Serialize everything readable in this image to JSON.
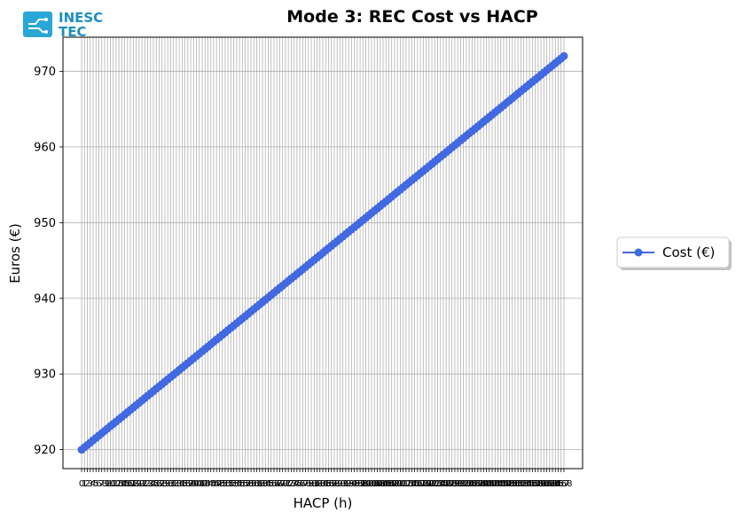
{
  "logo": {
    "line1": "INESC",
    "line2": "TEC"
  },
  "chart_data": {
    "type": "line",
    "title": "Mode 3: REC Cost vs HACP",
    "xlabel": "HACP (h)",
    "ylabel": "Euros (€)",
    "x": [
      0,
      1,
      2,
      3,
      4,
      5,
      6,
      7,
      8,
      9,
      10,
      11,
      12,
      13,
      14,
      15,
      16,
      17,
      18,
      19,
      20,
      21,
      22,
      23,
      24,
      25,
      26,
      27,
      28,
      29,
      30,
      31,
      32,
      33,
      34,
      35,
      36,
      37,
      38,
      39,
      40,
      41,
      42,
      43,
      44,
      45,
      46,
      47,
      48,
      49,
      50,
      51,
      52,
      53,
      54,
      55,
      56,
      57,
      58,
      59,
      60,
      61,
      62,
      63,
      64,
      65,
      66,
      67,
      68,
      69,
      70,
      71,
      72,
      73,
      74,
      75,
      76,
      77,
      78,
      79,
      80,
      81,
      82,
      83,
      84,
      85,
      86,
      87,
      88,
      89,
      90,
      91,
      92,
      93,
      94,
      95,
      96,
      97,
      98,
      99,
      100,
      101,
      102,
      103,
      104,
      105,
      106,
      107,
      108,
      109,
      110,
      111,
      112,
      113,
      114,
      115,
      116,
      117,
      118,
      119,
      120,
      121,
      122,
      123,
      124,
      125,
      126,
      127,
      128,
      129,
      130,
      131,
      132,
      133,
      134,
      135,
      136,
      137,
      138,
      139,
      140,
      141,
      142,
      143,
      144,
      145,
      146,
      147,
      148,
      149,
      150,
      151,
      152,
      153,
      154,
      155,
      156,
      157,
      158,
      159,
      160,
      161,
      162,
      163,
      164,
      165,
      166,
      167,
      168
    ],
    "series": [
      {
        "name": "Cost (€)",
        "color": "#4169e1",
        "values": [
          920.0,
          920.31,
          920.62,
          920.93,
          921.24,
          921.55,
          921.86,
          922.17,
          922.48,
          922.79,
          923.1,
          923.41,
          923.71,
          924.02,
          924.33,
          924.64,
          924.95,
          925.26,
          925.57,
          925.88,
          926.19,
          926.5,
          926.81,
          927.12,
          927.43,
          927.74,
          928.05,
          928.36,
          928.67,
          928.98,
          929.29,
          929.6,
          929.9,
          930.21,
          930.52,
          930.83,
          931.14,
          931.45,
          931.76,
          932.07,
          932.38,
          932.69,
          933.0,
          933.31,
          933.62,
          933.93,
          934.24,
          934.55,
          934.86,
          935.17,
          935.48,
          935.79,
          936.1,
          936.4,
          936.71,
          937.02,
          937.33,
          937.64,
          937.95,
          938.26,
          938.57,
          938.88,
          939.19,
          939.5,
          939.81,
          940.12,
          940.43,
          940.74,
          941.05,
          941.36,
          941.67,
          941.98,
          942.29,
          942.6,
          942.9,
          943.21,
          943.52,
          943.83,
          944.14,
          944.45,
          944.76,
          945.07,
          945.38,
          945.69,
          946.0,
          946.31,
          946.62,
          946.93,
          947.24,
          947.55,
          947.86,
          948.17,
          948.48,
          948.79,
          949.1,
          949.4,
          949.71,
          950.02,
          950.33,
          950.64,
          950.95,
          951.26,
          951.57,
          951.88,
          952.19,
          952.5,
          952.81,
          953.12,
          953.43,
          953.74,
          954.05,
          954.36,
          954.67,
          954.98,
          955.29,
          955.6,
          955.9,
          956.21,
          956.52,
          956.83,
          957.14,
          957.45,
          957.76,
          958.07,
          958.38,
          958.69,
          959.0,
          959.31,
          959.62,
          959.93,
          960.24,
          960.55,
          960.86,
          961.17,
          961.48,
          961.79,
          962.1,
          962.4,
          962.71,
          963.02,
          963.33,
          963.64,
          963.95,
          964.26,
          964.57,
          964.88,
          965.19,
          965.5,
          965.81,
          966.12,
          966.43,
          966.74,
          967.05,
          967.36,
          967.67,
          967.98,
          968.29,
          968.6,
          968.9,
          969.21,
          969.52,
          969.83,
          970.14,
          970.45,
          970.76,
          971.07,
          971.38,
          971.69,
          972.0
        ]
      }
    ],
    "yticks": [
      920,
      930,
      940,
      950,
      960,
      970
    ],
    "ylim": [
      917.5,
      974.5
    ],
    "xlim": [
      -6.5,
      174.5
    ],
    "grid": true,
    "legend_position": "right-outside"
  }
}
